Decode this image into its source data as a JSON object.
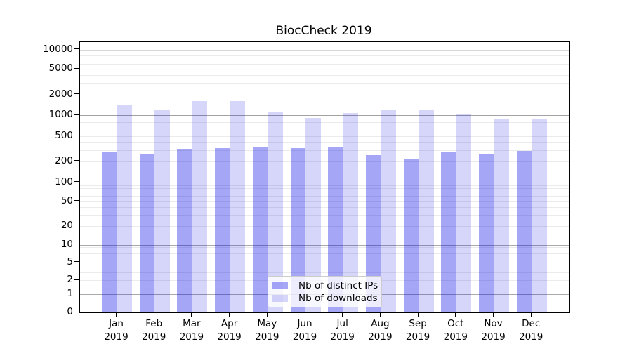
{
  "title": "BiocCheck 2019",
  "chart_data": {
    "type": "bar",
    "title": "BiocCheck 2019",
    "categories": [
      "Jan",
      "Feb",
      "Mar",
      "Apr",
      "May",
      "Jun",
      "Jul",
      "Aug",
      "Sep",
      "Oct",
      "Nov",
      "Dec"
    ],
    "year_label": "2019",
    "series": [
      {
        "name": "Nb of distinct IPs",
        "color": "rgba(0,0,230,0.35)",
        "values": [
          277,
          255,
          312,
          318,
          340,
          318,
          328,
          247,
          219,
          277,
          255,
          289
        ]
      },
      {
        "name": "Nb of downloads",
        "color": "rgba(0,0,230,0.16)",
        "values": [
          1390,
          1185,
          1590,
          1600,
          1090,
          910,
          1065,
          1195,
          1210,
          1030,
          895,
          868
        ]
      }
    ],
    "y_ticks": [
      0,
      1,
      2,
      5,
      10,
      20,
      50,
      100,
      200,
      500,
      1000,
      2000,
      5000,
      10000
    ],
    "y_scale": "symlog",
    "ylim": [
      0,
      10000
    ],
    "xlabel": "",
    "ylabel": "",
    "grid": true,
    "legend_position": "bottom-center"
  }
}
